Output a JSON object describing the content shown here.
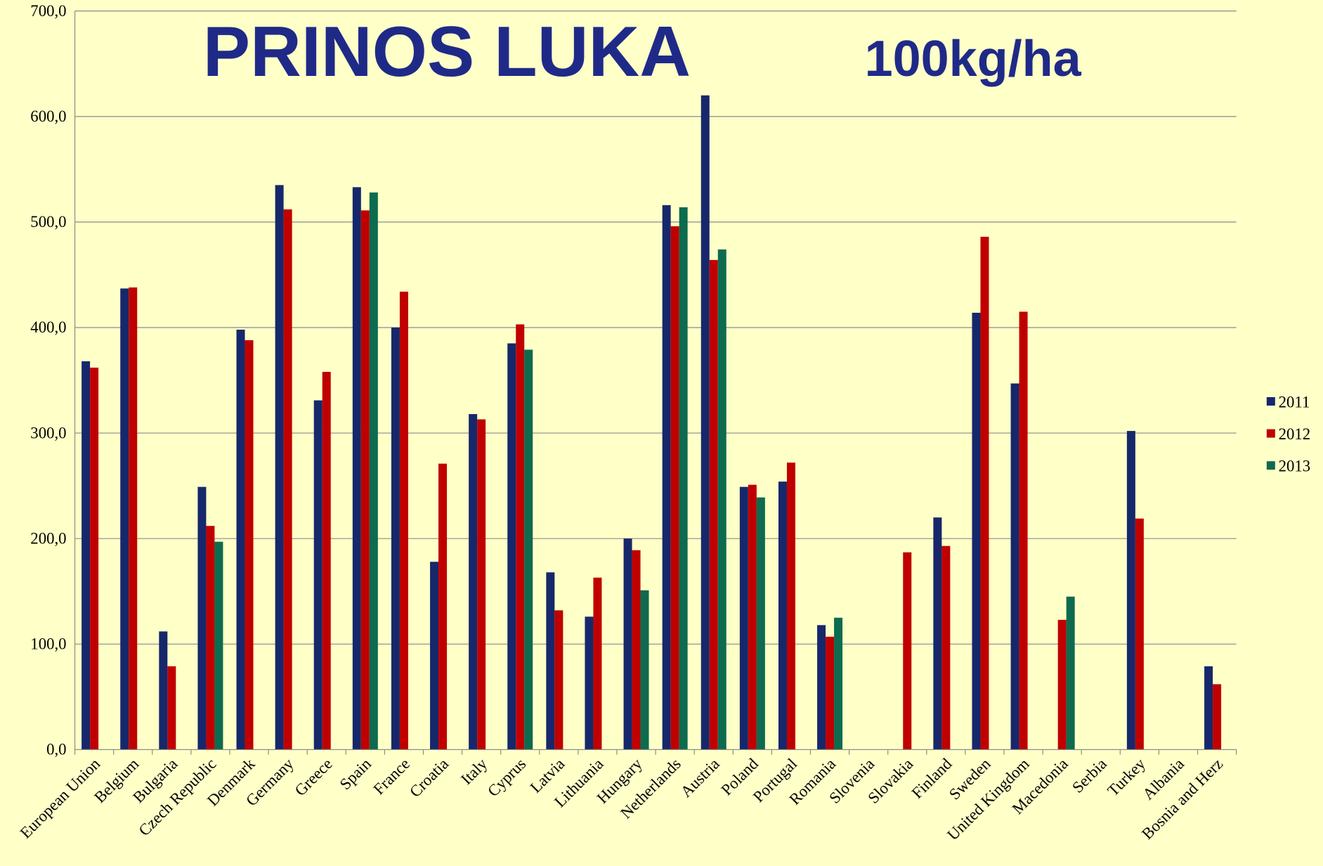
{
  "chart_data": {
    "type": "bar",
    "title": "PRINOS LUKA",
    "subtitle": "100kg/ha",
    "categories": [
      "European Union",
      "Belgium",
      "Bulgaria",
      "Czech Republic",
      "Denmark",
      "Germany",
      "Greece",
      "Spain",
      "France",
      "Croatia",
      "Italy",
      "Cyprus",
      "Latvia",
      "Lithuania",
      "Hungary",
      "Netherlands",
      "Austria",
      "Poland",
      "Portugal",
      "Romania",
      "Slovenia",
      "Slovakia",
      "Finland",
      "Sweden",
      "United Kingdom",
      "Macedonia",
      "Serbia",
      "Turkey",
      "Albania",
      "Bosnia and Herz"
    ],
    "series": [
      {
        "name": "2011",
        "color": "#16286b",
        "values": [
          368,
          437,
          112,
          249,
          398,
          535,
          331,
          533,
          400,
          178,
          318,
          385,
          168,
          126,
          200,
          516,
          620,
          249,
          254,
          118,
          null,
          null,
          220,
          414,
          347,
          null,
          null,
          302,
          null,
          79
        ]
      },
      {
        "name": "2012",
        "color": "#c00000",
        "values": [
          362,
          438,
          79,
          212,
          388,
          512,
          358,
          511,
          434,
          271,
          313,
          403,
          132,
          163,
          189,
          496,
          464,
          251,
          272,
          107,
          null,
          187,
          193,
          486,
          415,
          123,
          null,
          219,
          null,
          62
        ]
      },
      {
        "name": "2013",
        "color": "#0d6b4f",
        "values": [
          null,
          null,
          null,
          197,
          null,
          null,
          null,
          528,
          null,
          null,
          null,
          379,
          null,
          null,
          151,
          514,
          474,
          239,
          null,
          125,
          null,
          null,
          null,
          null,
          null,
          145,
          null,
          null,
          null,
          null
        ]
      }
    ],
    "ylim": [
      0,
      700
    ],
    "yticks": [
      {
        "value": 0,
        "label": "0,0"
      },
      {
        "value": 100,
        "label": "100,0"
      },
      {
        "value": 200,
        "label": "200,0"
      },
      {
        "value": 300,
        "label": "300,0"
      },
      {
        "value": 400,
        "label": "400,0"
      },
      {
        "value": 500,
        "label": "500,0"
      },
      {
        "value": 600,
        "label": "600,0"
      },
      {
        "value": 700,
        "label": "700,0"
      }
    ],
    "grid": true,
    "legend": "right"
  }
}
